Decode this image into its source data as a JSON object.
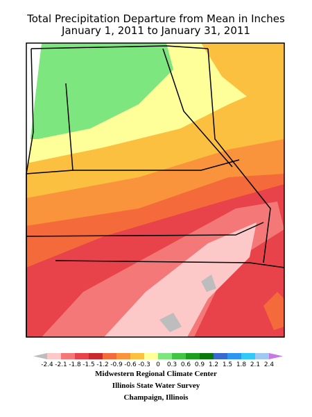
{
  "header": {
    "title": "Total Precipitation Departure from Mean in Inches",
    "subtitle": "January 1, 2011 to January 31, 2011"
  },
  "legend": {
    "labels": [
      "-2.4",
      "-2.1",
      "-1.8",
      "-1.5",
      "-1.2",
      "-0.9",
      "-0.6",
      "-0.3",
      "0",
      "0.3",
      "0.6",
      "0.9",
      "1.2",
      "1.5",
      "1.8",
      "2.1",
      "2.4"
    ],
    "colors": [
      "#bdbdbd",
      "#fcc8c8",
      "#f47878",
      "#e8424a",
      "#c8282e",
      "#f46a3a",
      "#f9943c",
      "#fcc040",
      "#ffff99",
      "#7ee67e",
      "#44c444",
      "#1e9e1e",
      "#0a780a",
      "#3a6ad0",
      "#2c96f0",
      "#32c8f8",
      "#a0c8f0",
      "#c878e6"
    ]
  },
  "credits": [
    "Midwestern Regional Climate Center",
    "Illinois State Water Survey",
    "Champaign, Illinois"
  ]
}
